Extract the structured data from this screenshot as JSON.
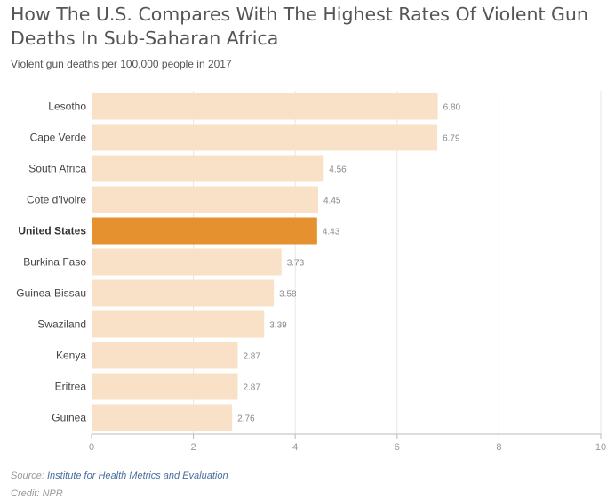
{
  "title": "How The U.S. Compares With The Highest Rates Of Violent Gun Deaths In Sub-Saharan Africa",
  "subtitle": "Violent gun deaths per 100,000 people in 2017",
  "source_label": "Source:",
  "source_name": "Institute for Health Metrics and Evaluation",
  "credit": "Credit: NPR",
  "colors": {
    "bar": "#f9e1c7",
    "highlight": "#e59130",
    "grid": "#e6e6e6",
    "axis": "#bbbbbb"
  },
  "chart_data": {
    "type": "bar",
    "orientation": "horizontal",
    "categories": [
      "Lesotho",
      "Cape Verde",
      "South Africa",
      "Cote d'Ivoire",
      "United States",
      "Burkina Faso",
      "Guinea-Bissau",
      "Swaziland",
      "Kenya",
      "Eritrea",
      "Guinea"
    ],
    "values": [
      6.8,
      6.79,
      4.56,
      4.45,
      4.43,
      3.73,
      3.58,
      3.39,
      2.87,
      2.87,
      2.76
    ],
    "value_labels": [
      "6.80",
      "6.79",
      "4.56",
      "4.45",
      "4.43",
      "3.73",
      "3.58",
      "3.39",
      "2.87",
      "2.87",
      "2.76"
    ],
    "highlight": "United States",
    "xlim": [
      0,
      10
    ],
    "xticks": [
      0,
      2,
      4,
      6,
      8,
      10
    ],
    "grid": true,
    "xlabel": "",
    "ylabel": ""
  }
}
